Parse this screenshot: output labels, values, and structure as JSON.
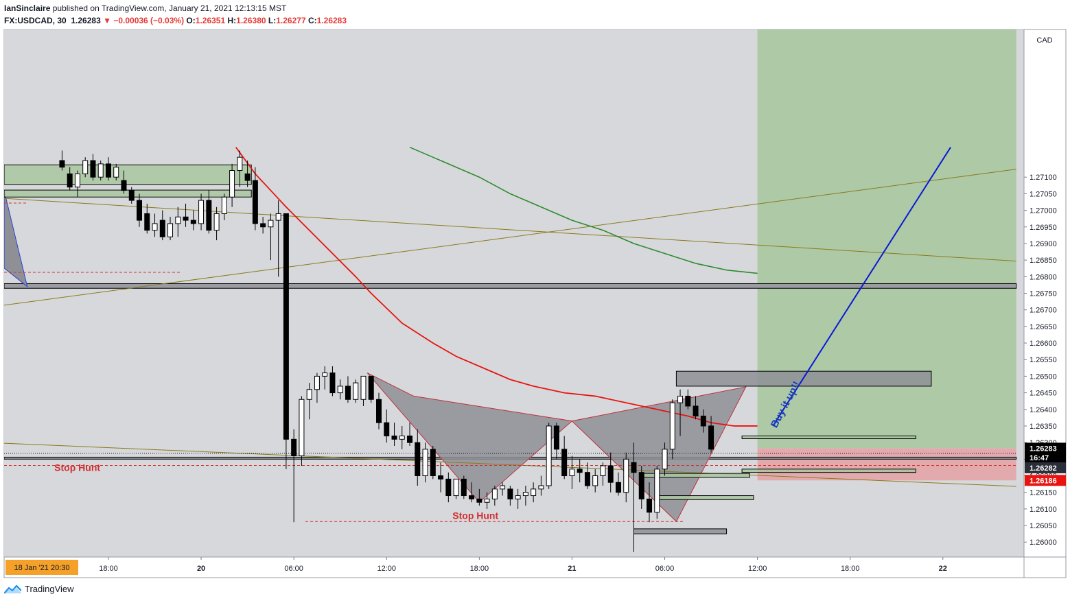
{
  "header": {
    "author": "IanSinclaire",
    "published_text": "published on TradingView.com, January 21, 2021 12:13:15 MST"
  },
  "ohlc": {
    "symbol": "FX:USDCAD, 30",
    "last": "1.26283",
    "arrow": "▼",
    "change": "−0.00036 (−0.03%)",
    "o_label": "O:",
    "o": "1.26351",
    "h_label": "H:",
    "h": "1.26380",
    "l_label": "L:",
    "l": "1.26277",
    "c_label": "C:",
    "c": "1.26283"
  },
  "footer": {
    "brand": "TradingView"
  },
  "colors": {
    "background": "#d6d8dc",
    "up": "#ffffff",
    "down": "#000000",
    "ema_red": "#e8140f",
    "ema_green": "#2e8b2e",
    "trend_olive": "#8b7a1a",
    "blue_line": "#0a19d6",
    "target_zone": "#a8c8a0",
    "stop_zone": "#e4a5a8",
    "pattern_fill": "#8f9096",
    "pattern_stroke": "#c0303a",
    "annotation_red": "#d32f2f"
  },
  "chart_data": {
    "type": "candlestick",
    "symbol": "FX:USDCAD",
    "timeframe": "30",
    "ylabel": "CAD",
    "ylim": [
      1.25955,
      1.27545
    ],
    "y_ticks": [
      "1.27100",
      "1.27050",
      "1.27000",
      "1.26950",
      "1.26900",
      "1.26850",
      "1.26800",
      "1.26750",
      "1.26700",
      "1.26650",
      "1.26600",
      "1.26550",
      "1.26500",
      "1.26450",
      "1.26400",
      "1.26350",
      "1.26300",
      "1.26250",
      "1.26200",
      "1.26150",
      "1.26100",
      "1.26050",
      "1.26000"
    ],
    "x_ticks": [
      {
        "bar": 6,
        "label": "18:00"
      },
      {
        "bar": 18,
        "label": "20"
      },
      {
        "bar": 30,
        "label": "06:00"
      },
      {
        "bar": 42,
        "label": "12:00"
      },
      {
        "bar": 54,
        "label": "18:00"
      },
      {
        "bar": 66,
        "label": "21"
      },
      {
        "bar": 78,
        "label": "06:00"
      },
      {
        "bar": 90,
        "label": "12:00"
      },
      {
        "bar": 102,
        "label": "18:00"
      },
      {
        "bar": 114,
        "label": "22"
      }
    ],
    "x_range_bars": [
      -7.5,
      124.5
    ],
    "crosshair_date": "18 Jan '21   20:30",
    "price_labels": [
      {
        "label": "1.26283",
        "value": 1.26283,
        "kind": "last"
      },
      {
        "label": "16:47",
        "value": 1.26255,
        "kind": "countdown"
      },
      {
        "label": "1.26282",
        "value": 1.26224,
        "kind": "dark"
      },
      {
        "label": "1.26186",
        "value": 1.26186,
        "kind": "stop"
      }
    ],
    "candles": [
      {
        "o": 1.2715,
        "h": 1.2718,
        "l": 1.2712,
        "c": 1.2713
      },
      {
        "o": 1.2711,
        "h": 1.2713,
        "l": 1.2706,
        "c": 1.2707
      },
      {
        "o": 1.2707,
        "h": 1.2712,
        "l": 1.2704,
        "c": 1.2711
      },
      {
        "o": 1.2711,
        "h": 1.2716,
        "l": 1.271,
        "c": 1.2715
      },
      {
        "o": 1.2715,
        "h": 1.2717,
        "l": 1.2709,
        "c": 1.271
      },
      {
        "o": 1.271,
        "h": 1.2715,
        "l": 1.2709,
        "c": 1.2714
      },
      {
        "o": 1.2714,
        "h": 1.2716,
        "l": 1.2709,
        "c": 1.271
      },
      {
        "o": 1.271,
        "h": 1.2714,
        "l": 1.2709,
        "c": 1.2713
      },
      {
        "o": 1.2709,
        "h": 1.2712,
        "l": 1.2705,
        "c": 1.2706
      },
      {
        "o": 1.2706,
        "h": 1.2707,
        "l": 1.2702,
        "c": 1.2703
      },
      {
        "o": 1.2703,
        "h": 1.2705,
        "l": 1.2695,
        "c": 1.2697
      },
      {
        "o": 1.2699,
        "h": 1.2702,
        "l": 1.2693,
        "c": 1.2694
      },
      {
        "o": 1.2694,
        "h": 1.2699,
        "l": 1.2692,
        "c": 1.2696
      },
      {
        "o": 1.2697,
        "h": 1.27,
        "l": 1.2691,
        "c": 1.2692
      },
      {
        "o": 1.2692,
        "h": 1.2698,
        "l": 1.2691,
        "c": 1.2696
      },
      {
        "o": 1.2696,
        "h": 1.2701,
        "l": 1.2692,
        "c": 1.2698
      },
      {
        "o": 1.2698,
        "h": 1.2702,
        "l": 1.2695,
        "c": 1.2697
      },
      {
        "o": 1.2697,
        "h": 1.27,
        "l": 1.2694,
        "c": 1.2696
      },
      {
        "o": 1.2696,
        "h": 1.2705,
        "l": 1.2694,
        "c": 1.2703
      },
      {
        "o": 1.2703,
        "h": 1.2706,
        "l": 1.2693,
        "c": 1.2694
      },
      {
        "o": 1.2694,
        "h": 1.2701,
        "l": 1.2691,
        "c": 1.2699
      },
      {
        "o": 1.2699,
        "h": 1.2705,
        "l": 1.2697,
        "c": 1.2704
      },
      {
        "o": 1.2704,
        "h": 1.2714,
        "l": 1.2701,
        "c": 1.2712
      },
      {
        "o": 1.2712,
        "h": 1.2718,
        "l": 1.2707,
        "c": 1.2716
      },
      {
        "o": 1.2711,
        "h": 1.2715,
        "l": 1.2707,
        "c": 1.2709
      },
      {
        "o": 1.2709,
        "h": 1.2713,
        "l": 1.2694,
        "c": 1.2696
      },
      {
        "o": 1.2696,
        "h": 1.2698,
        "l": 1.2693,
        "c": 1.2695
      },
      {
        "o": 1.2695,
        "h": 1.2699,
        "l": 1.2685,
        "c": 1.2697
      },
      {
        "o": 1.2697,
        "h": 1.2703,
        "l": 1.268,
        "c": 1.2699
      },
      {
        "o": 1.2699,
        "h": 1.2699,
        "l": 1.2622,
        "c": 1.2631
      },
      {
        "o": 1.2631,
        "h": 1.2634,
        "l": 1.2606,
        "c": 1.2626
      },
      {
        "o": 1.2626,
        "h": 1.2644,
        "l": 1.2623,
        "c": 1.2643
      },
      {
        "o": 1.2643,
        "h": 1.2648,
        "l": 1.2637,
        "c": 1.2646
      },
      {
        "o": 1.2646,
        "h": 1.2651,
        "l": 1.2642,
        "c": 1.265
      },
      {
        "o": 1.265,
        "h": 1.2653,
        "l": 1.2646,
        "c": 1.2651
      },
      {
        "o": 1.2651,
        "h": 1.2653,
        "l": 1.2644,
        "c": 1.2645
      },
      {
        "o": 1.2645,
        "h": 1.2649,
        "l": 1.2643,
        "c": 1.2647
      },
      {
        "o": 1.2647,
        "h": 1.265,
        "l": 1.2642,
        "c": 1.2643
      },
      {
        "o": 1.2643,
        "h": 1.2649,
        "l": 1.2642,
        "c": 1.2648
      },
      {
        "o": 1.2643,
        "h": 1.265,
        "l": 1.2641,
        "c": 1.265
      },
      {
        "o": 1.265,
        "h": 1.265,
        "l": 1.2642,
        "c": 1.2643
      },
      {
        "o": 1.2643,
        "h": 1.2645,
        "l": 1.2634,
        "c": 1.2636
      },
      {
        "o": 1.2636,
        "h": 1.264,
        "l": 1.263,
        "c": 1.2632
      },
      {
        "o": 1.2632,
        "h": 1.2636,
        "l": 1.2629,
        "c": 1.2631
      },
      {
        "o": 1.2631,
        "h": 1.2635,
        "l": 1.2628,
        "c": 1.2632
      },
      {
        "o": 1.2632,
        "h": 1.2636,
        "l": 1.2629,
        "c": 1.263
      },
      {
        "o": 1.263,
        "h": 1.2634,
        "l": 1.2617,
        "c": 1.262
      },
      {
        "o": 1.262,
        "h": 1.263,
        "l": 1.2618,
        "c": 1.2628
      },
      {
        "o": 1.2628,
        "h": 1.2629,
        "l": 1.2619,
        "c": 1.262
      },
      {
        "o": 1.262,
        "h": 1.2624,
        "l": 1.2615,
        "c": 1.2619
      },
      {
        "o": 1.2619,
        "h": 1.2621,
        "l": 1.2612,
        "c": 1.2614
      },
      {
        "o": 1.2614,
        "h": 1.2619,
        "l": 1.2613,
        "c": 1.2619
      },
      {
        "o": 1.2619,
        "h": 1.262,
        "l": 1.2613,
        "c": 1.2614
      },
      {
        "o": 1.2614,
        "h": 1.2618,
        "l": 1.2612,
        "c": 1.2613
      },
      {
        "o": 1.2613,
        "h": 1.2616,
        "l": 1.2611,
        "c": 1.2612
      },
      {
        "o": 1.2612,
        "h": 1.2615,
        "l": 1.261,
        "c": 1.2613
      },
      {
        "o": 1.2613,
        "h": 1.2617,
        "l": 1.2611,
        "c": 1.2616
      },
      {
        "o": 1.2616,
        "h": 1.2618,
        "l": 1.2614,
        "c": 1.2617
      },
      {
        "o": 1.2616,
        "h": 1.2617,
        "l": 1.2611,
        "c": 1.2613
      },
      {
        "o": 1.2613,
        "h": 1.2616,
        "l": 1.261,
        "c": 1.2614
      },
      {
        "o": 1.2614,
        "h": 1.2617,
        "l": 1.2611,
        "c": 1.2615
      },
      {
        "o": 1.2614,
        "h": 1.2618,
        "l": 1.2612,
        "c": 1.2616
      },
      {
        "o": 1.2616,
        "h": 1.262,
        "l": 1.2614,
        "c": 1.2617
      },
      {
        "o": 1.2617,
        "h": 1.2636,
        "l": 1.2616,
        "c": 1.2635
      },
      {
        "o": 1.2635,
        "h": 1.2636,
        "l": 1.2625,
        "c": 1.2628
      },
      {
        "o": 1.2628,
        "h": 1.2632,
        "l": 1.2619,
        "c": 1.262
      },
      {
        "o": 1.262,
        "h": 1.2626,
        "l": 1.2616,
        "c": 1.2622
      },
      {
        "o": 1.2622,
        "h": 1.2625,
        "l": 1.2618,
        "c": 1.2621
      },
      {
        "o": 1.2621,
        "h": 1.2624,
        "l": 1.2616,
        "c": 1.2617
      },
      {
        "o": 1.2617,
        "h": 1.2622,
        "l": 1.2615,
        "c": 1.262
      },
      {
        "o": 1.262,
        "h": 1.2624,
        "l": 1.2617,
        "c": 1.2623
      },
      {
        "o": 1.2623,
        "h": 1.2627,
        "l": 1.2615,
        "c": 1.2618
      },
      {
        "o": 1.2618,
        "h": 1.2621,
        "l": 1.2614,
        "c": 1.2615
      },
      {
        "o": 1.2615,
        "h": 1.2627,
        "l": 1.2612,
        "c": 1.2625
      },
      {
        "o": 1.2624,
        "h": 1.263,
        "l": 1.2597,
        "c": 1.2621
      },
      {
        "o": 1.2621,
        "h": 1.2623,
        "l": 1.261,
        "c": 1.2613
      },
      {
        "o": 1.2613,
        "h": 1.2618,
        "l": 1.2606,
        "c": 1.2609
      },
      {
        "o": 1.2609,
        "h": 1.2623,
        "l": 1.2607,
        "c": 1.2622
      },
      {
        "o": 1.2622,
        "h": 1.263,
        "l": 1.262,
        "c": 1.2628
      },
      {
        "o": 1.2628,
        "h": 1.2643,
        "l": 1.2625,
        "c": 1.2642
      },
      {
        "o": 1.2642,
        "h": 1.2646,
        "l": 1.2632,
        "c": 1.2644
      },
      {
        "o": 1.2644,
        "h": 1.2646,
        "l": 1.264,
        "c": 1.2641
      },
      {
        "o": 1.2641,
        "h": 1.2644,
        "l": 1.2637,
        "c": 1.2638
      },
      {
        "o": 1.2638,
        "h": 1.264,
        "l": 1.2633,
        "c": 1.2635
      },
      {
        "o": 1.2635,
        "h": 1.2638,
        "l": 1.2627,
        "c": 1.2628
      }
    ],
    "ema_red_bars": [
      [
        22.5,
        1.2719
      ],
      [
        25,
        1.2711
      ],
      [
        27,
        1.2706
      ],
      [
        29,
        1.2701
      ],
      [
        32,
        1.2694
      ],
      [
        35,
        1.2687
      ],
      [
        38,
        1.268
      ],
      [
        40,
        1.2675
      ],
      [
        44,
        1.2666
      ],
      [
        48,
        1.266
      ],
      [
        51,
        1.2656
      ],
      [
        55,
        1.2652
      ],
      [
        58,
        1.2649
      ],
      [
        61,
        1.2647
      ],
      [
        65,
        1.2645
      ],
      [
        69,
        1.2644
      ],
      [
        73,
        1.2642
      ],
      [
        77,
        1.264
      ],
      [
        81,
        1.2638
      ],
      [
        84,
        1.2636
      ],
      [
        87,
        1.2635
      ],
      [
        89,
        1.2635
      ],
      [
        90,
        1.2635
      ]
    ],
    "ema_green_bars": [
      [
        45,
        1.2719
      ],
      [
        50,
        1.2714
      ],
      [
        54,
        1.271
      ],
      [
        58,
        1.2705
      ],
      [
        62,
        1.2701
      ],
      [
        66,
        1.2697
      ],
      [
        70,
        1.2694
      ],
      [
        74,
        1.269
      ],
      [
        78,
        1.2687
      ],
      [
        82,
        1.2684
      ],
      [
        86,
        1.2682
      ],
      [
        90,
        1.2681
      ]
    ],
    "trend_up": [
      [
        -7.5,
        1.26714
      ],
      [
        123.5,
        1.27124
      ]
    ],
    "trend_down1": [
      [
        -7.5,
        1.27036
      ],
      [
        123.5,
        1.26847
      ]
    ],
    "trend_down2": [
      [
        -7.5,
        1.26298
      ],
      [
        123.5,
        1.26168
      ]
    ],
    "blue_line": [
      [
        92,
        1.2635
      ],
      [
        115,
        1.2719
      ]
    ],
    "target_zone": {
      "from_bar": 90,
      "to_bar": 123.5,
      "top": 1.27545,
      "bottom": 1.26283
    },
    "stop_zone": {
      "from_bar": 90,
      "to_bar": 123.5,
      "top": 1.26283,
      "bottom": 1.26186
    },
    "horizontal_bands": [
      {
        "from_bar": -7.5,
        "to_bar": 123.5,
        "top": 1.26779,
        "bottom": 1.26765
      },
      {
        "from_bar": -7.5,
        "to_bar": 123.5,
        "top": 1.26256,
        "bottom": 1.2625
      }
    ],
    "boxes": [
      {
        "from_bar": -7.5,
        "to_bar": 24.5,
        "top": 1.27137,
        "bottom": 1.27078,
        "fill": "green"
      },
      {
        "from_bar": -7.5,
        "to_bar": 24.5,
        "top": 1.27061,
        "bottom": 1.2704,
        "fill": "green"
      },
      {
        "from_bar": 79.5,
        "to_bar": 112.5,
        "top": 1.26515,
        "bottom": 1.2647,
        "fill": "grey"
      },
      {
        "from_bar": 88,
        "to_bar": 110.5,
        "top": 1.2632,
        "bottom": 1.26312,
        "fill": "green"
      },
      {
        "from_bar": 88,
        "to_bar": 110.5,
        "top": 1.2622,
        "bottom": 1.2621,
        "fill": "green"
      },
      {
        "from_bar": 75,
        "to_bar": 89,
        "top": 1.26207,
        "bottom": 1.26195,
        "fill": "green"
      },
      {
        "from_bar": 77,
        "to_bar": 89.5,
        "top": 1.2614,
        "bottom": 1.26128,
        "fill": "green"
      },
      {
        "from_bar": 74,
        "to_bar": 86,
        "top": 1.2604,
        "bottom": 1.26025,
        "fill": "grey"
      }
    ],
    "dashed_levels": [
      {
        "from_bar": -7.5,
        "to_bar": 123.5,
        "value": 1.26231,
        "color": "red"
      },
      {
        "from_bar": -7.5,
        "to_bar": 123.5,
        "value": 1.26268,
        "color": "black"
      },
      {
        "from_bar": 31.5,
        "to_bar": 80.5,
        "value": 1.26062,
        "color": "red"
      },
      {
        "from_bar": -7.5,
        "to_bar": 15.5,
        "value": 1.26813,
        "color": "red"
      },
      {
        "from_bar": -7.5,
        "to_bar": -4.5,
        "value": 1.27022,
        "color": "red"
      }
    ],
    "harmonic_patterns": [
      [
        [
          39.5,
          1.2651
        ],
        [
          54,
          1.2612
        ],
        [
          66,
          1.26365
        ],
        [
          45.5,
          1.2644
        ]
      ],
      [
        [
          66,
          1.26365
        ],
        [
          79.5,
          1.26062
        ],
        [
          88.5,
          1.26468
        ],
        [
          66,
          1.26365
        ]
      ]
    ],
    "left_wedge": [
      [
        -7.5,
        1.2706
      ],
      [
        -4.5,
        1.2677
      ],
      [
        -7.5,
        1.26826
      ]
    ],
    "annotations": [
      {
        "text": "Stop Hunt",
        "bar": -1,
        "value": 1.26215
      },
      {
        "text": "Stop Hunt",
        "bar": 53.5,
        "value": 1.2607
      },
      {
        "text": "Buy it up!!",
        "bar": 94,
        "value": 1.2641
      }
    ]
  }
}
